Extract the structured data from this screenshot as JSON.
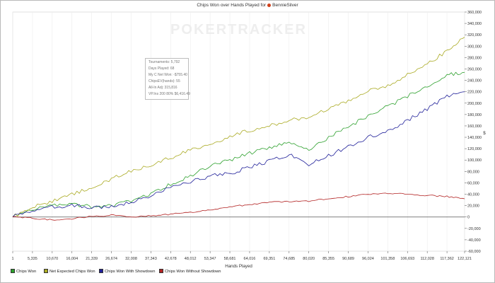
{
  "chart_data": {
    "type": "line",
    "title": "Chips Won over Hands Played for",
    "player_name": "BennieSilver",
    "watermark": "POKERTRACKER",
    "xlabel": "Hands Played",
    "ylabel": "$",
    "xlim": [
      1,
      122121
    ],
    "ylim": [
      -60000,
      360000
    ],
    "x_ticks": [
      1,
      5335,
      10670,
      16004,
      21339,
      26674,
      32008,
      37343,
      42678,
      48012,
      53347,
      58681,
      64016,
      69351,
      74685,
      80020,
      85355,
      90689,
      96024,
      101358,
      106693,
      112028,
      117362,
      122121
    ],
    "x_tick_labels": [
      "1",
      "5,335",
      "10,670",
      "16,004",
      "21,339",
      "26,674",
      "32,008",
      "37,343",
      "42,678",
      "48,012",
      "53,347",
      "58,681",
      "64,016",
      "69,351",
      "74,685",
      "80,020",
      "85,355",
      "90,689",
      "96,024",
      "101,358",
      "106,693",
      "112,028",
      "117,362",
      "122,121"
    ],
    "y_ticks": [
      -60000,
      -40000,
      -20000,
      0,
      20000,
      40000,
      60000,
      80000,
      100000,
      120000,
      140000,
      160000,
      180000,
      200000,
      220000,
      240000,
      260000,
      280000,
      300000,
      320000,
      340000,
      360000
    ],
    "y_tick_labels": [
      "-60,000",
      "-40,000",
      "-20,000",
      "0",
      "20,000",
      "40,000",
      "60,000",
      "80,000",
      "100,000",
      "120,000",
      "140,000",
      "160,000",
      "180,000",
      "200,000",
      "220,000",
      "240,000",
      "260,000",
      "280,000",
      "300,000",
      "320,000",
      "340,000",
      "360,000"
    ],
    "grid": "vertical",
    "legend_position": "bottom",
    "series": [
      {
        "name": "Chips Won",
        "color": "#2ca02c",
        "x": [
          1,
          5335,
          10670,
          16004,
          21339,
          26674,
          32008,
          37343,
          42678,
          48012,
          53347,
          58681,
          64016,
          69351,
          74685,
          80020,
          85355,
          90689,
          96024,
          101358,
          106693,
          112028,
          117362,
          122121
        ],
        "y": [
          0,
          14000,
          20000,
          22000,
          18000,
          20000,
          28000,
          40000,
          58000,
          72000,
          90000,
          100000,
          112000,
          122000,
          132000,
          118000,
          140000,
          158000,
          178000,
          194000,
          212000,
          230000,
          250000,
          254000
        ]
      },
      {
        "name": "Net Expected Chips Won",
        "color": "#aaaa22",
        "x": [
          1,
          5335,
          10670,
          16004,
          21339,
          26674,
          32008,
          37343,
          42678,
          48012,
          53347,
          58681,
          64016,
          69351,
          74685,
          80020,
          85355,
          90689,
          96024,
          101358,
          106693,
          112028,
          117362,
          122121
        ],
        "y": [
          0,
          18000,
          27000,
          40000,
          52000,
          67000,
          80000,
          92000,
          104000,
          118000,
          128000,
          142000,
          152000,
          160000,
          170000,
          176000,
          190000,
          205000,
          222000,
          230000,
          250000,
          268000,
          292000,
          316000
        ]
      },
      {
        "name": "Chips Won With Showdown",
        "color": "#1f1f99",
        "x": [
          1,
          5335,
          10670,
          16004,
          21339,
          26674,
          32008,
          37343,
          42678,
          48012,
          53347,
          58681,
          64016,
          69351,
          74685,
          80020,
          85355,
          90689,
          96024,
          101358,
          106693,
          112028,
          117362,
          122121
        ],
        "y": [
          0,
          12000,
          18000,
          20000,
          16000,
          18000,
          26000,
          38000,
          52000,
          62000,
          72000,
          76000,
          88000,
          98000,
          110000,
          92000,
          108000,
          124000,
          140000,
          150000,
          170000,
          190000,
          212000,
          220000
        ]
      },
      {
        "name": "Chips Won Without Showdown",
        "color": "#b22222",
        "x": [
          1,
          5335,
          10670,
          16004,
          21339,
          26674,
          32008,
          37343,
          42678,
          48012,
          53347,
          58681,
          64016,
          69351,
          74685,
          80020,
          85355,
          90689,
          96024,
          101358,
          106693,
          112028,
          117362,
          122121
        ],
        "y": [
          0,
          -2000,
          -5000,
          -3000,
          1000,
          3000,
          0,
          2000,
          5000,
          8000,
          12000,
          18000,
          22000,
          26000,
          27000,
          28000,
          32000,
          36000,
          40000,
          42000,
          40000,
          38000,
          36000,
          32000
        ]
      }
    ]
  },
  "stats_box": [
    "Tournaments: 5,792",
    "Days Played: 68",
    "My C Net Won: -$755.40",
    "ChipsEV(hands): 55",
    "All-In Adj: 315,816",
    "VP.Ins 200 80% $6,416.49"
  ]
}
